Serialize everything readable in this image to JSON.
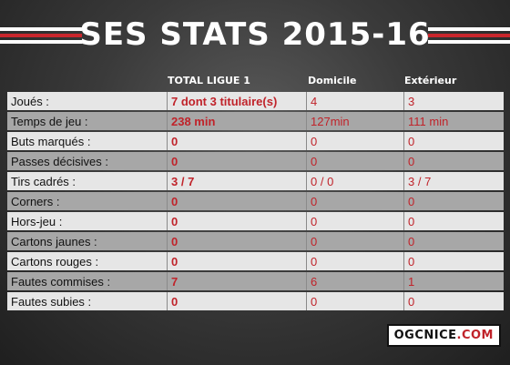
{
  "title": "SES STATS 2015-16",
  "columns": {
    "total": "TOTAL LIGUE 1",
    "home": "Domicile",
    "away": "Extérieur"
  },
  "rows": [
    {
      "label": "Joués :",
      "total": "7 dont 3 titulaire(s)",
      "home": "4",
      "away": "3"
    },
    {
      "label": "Temps de jeu :",
      "total": "238 min",
      "home": "127min",
      "away": "111 min"
    },
    {
      "label": "Buts marqués :",
      "total": "0",
      "home": "0",
      "away": "0"
    },
    {
      "label": "Passes décisives :",
      "total": "0",
      "home": "0",
      "away": "0"
    },
    {
      "label": "Tirs cadrés :",
      "total": "3 / 7",
      "home": "0 / 0",
      "away": "3 / 7"
    },
    {
      "label": "Corners :",
      "total": "0",
      "home": "0",
      "away": "0"
    },
    {
      "label": "Hors-jeu :",
      "total": "0",
      "home": "0",
      "away": "0"
    },
    {
      "label": "Cartons jaunes :",
      "total": "0",
      "home": "0",
      "away": "0"
    },
    {
      "label": "Cartons rouges :",
      "total": "0",
      "home": "0",
      "away": "0"
    },
    {
      "label": "Fautes commises :",
      "total": "7",
      "home": "6",
      "away": "1"
    },
    {
      "label": "Fautes subies :",
      "total": "0",
      "home": "0",
      "away": "0"
    }
  ],
  "logo": {
    "text_a": "OGCNICE",
    "text_b": ".COM"
  },
  "colors": {
    "accent_red": "#c0232a",
    "row_light": "#e6e6e6",
    "row_dark": "#a7a7a7"
  }
}
